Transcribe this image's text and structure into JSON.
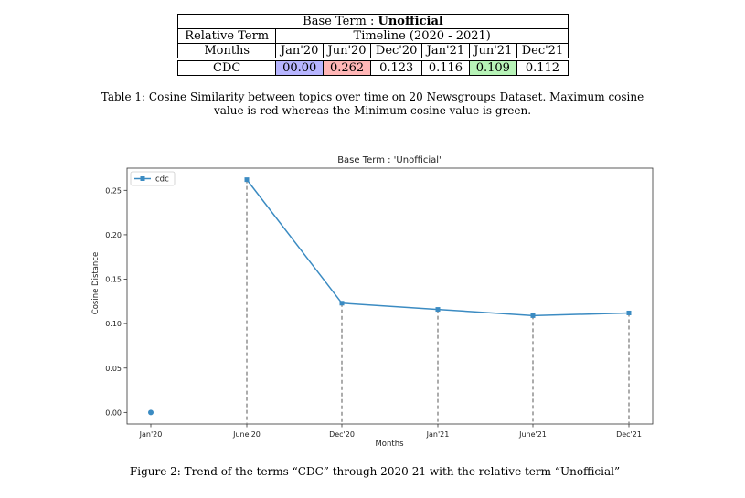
{
  "table": {
    "title_prefix": "Base Term : ",
    "title_term": "Unofficial",
    "relative_term_label": "Relative Term",
    "timeline_label": "Timeline (2020 - 2021)",
    "months_label": "Months",
    "months": [
      "Jan'20",
      "Jun'20",
      "Dec'20",
      "Jan'21",
      "Jun'21",
      "Dec'21"
    ],
    "row_label": "CDC",
    "values": [
      "00.00",
      "0.262",
      "0.123",
      "0.116",
      "0.109",
      "0.112"
    ],
    "highlight_colors": {
      "min_blue": "#b7b5ff",
      "max_red": "#ffb6b6",
      "green": "#b7f3b7"
    }
  },
  "table_caption": "Table 1: Cosine Similarity between topics over time on 20 Newsgroups Dataset. Maximum cosine value is red whereas the Minimum cosine value is green.",
  "figure_caption": "Figure 2: Trend of the terms “CDC” through 2020-21 with the relative term “Unofficial”",
  "chart_data": {
    "type": "line",
    "title": "Base Term : 'Unofficial'",
    "xlabel": "Months",
    "ylabel": "Cosine Distance",
    "categories": [
      "Jan'20",
      "June'20",
      "Dec'20",
      "Jan'21",
      "June'21",
      "Dec'21"
    ],
    "series": [
      {
        "name": "cdc",
        "values": [
          0.0,
          0.262,
          0.123,
          0.116,
          0.109,
          0.112
        ],
        "color": "#3b8bc2"
      }
    ],
    "yticks": [
      "0.00",
      "0.05",
      "0.10",
      "0.15",
      "0.20",
      "0.25"
    ],
    "ylim": [
      -0.013,
      0.275
    ],
    "line_segments": "first point isolated; line connects June'20 through Dec'21",
    "drop_lines": "grey dashed vertical lines from each point to x-axis",
    "legend_position": "upper-left",
    "grid": false
  }
}
